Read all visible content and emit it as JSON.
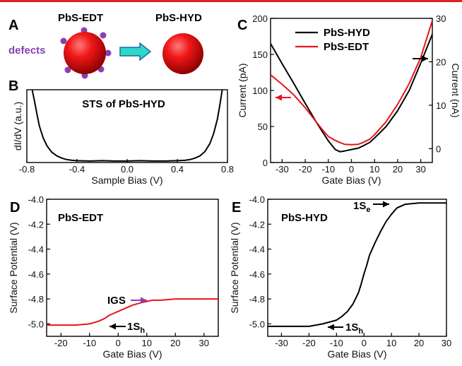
{
  "colors": {
    "black": "#000000",
    "red": "#e8141c",
    "purple": "#8b3fb0",
    "arrow": "#2fd6cc",
    "topbar": "#e02020"
  },
  "panel_a": {
    "label": "A",
    "left_title": "PbS-EDT",
    "right_title": "PbS-HYD",
    "defects_label": "defects"
  },
  "chart_data": [
    {
      "id": "B",
      "type": "line",
      "panel_label": "B",
      "title": "STS of PbS-HYD",
      "xlabel": "Sample Bias (V)",
      "ylabel": "dI/dV (a.u.)",
      "xlim": [
        -0.8,
        0.8
      ],
      "ylim": [
        0,
        1
      ],
      "xticks": [
        -0.8,
        -0.4,
        0.0,
        0.4,
        0.8
      ],
      "xticklabels": [
        "-0.8",
        "-0.4",
        "0.0",
        "0.4",
        "0.8"
      ],
      "series": [
        {
          "color": "#000000",
          "x": [
            -0.76,
            -0.74,
            -0.72,
            -0.7,
            -0.67,
            -0.64,
            -0.6,
            -0.56,
            -0.52,
            -0.48,
            -0.44,
            -0.4,
            -0.3,
            -0.2,
            -0.1,
            0.0,
            0.1,
            0.2,
            0.3,
            0.4,
            0.46,
            0.5,
            0.54,
            0.58,
            0.62,
            0.66,
            0.69,
            0.72,
            0.74,
            0.76
          ],
          "y": [
            1.02,
            0.85,
            0.67,
            0.5,
            0.34,
            0.23,
            0.14,
            0.09,
            0.06,
            0.04,
            0.03,
            0.025,
            0.02,
            0.025,
            0.02,
            0.02,
            0.025,
            0.02,
            0.02,
            0.025,
            0.03,
            0.04,
            0.06,
            0.09,
            0.15,
            0.26,
            0.4,
            0.6,
            0.8,
            1.02
          ]
        }
      ]
    },
    {
      "id": "C",
      "type": "line",
      "panel_label": "C",
      "xlabel": "Gate Bias (V)",
      "ylabel_left": "Current (pA)",
      "ylabel_right": "Current (nA)",
      "xlim": [
        -35,
        35
      ],
      "ylim_left": [
        0,
        200
      ],
      "ylim_right": [
        -3.2,
        30
      ],
      "xticks": [
        -30,
        -20,
        -10,
        0,
        10,
        20,
        30
      ],
      "xticklabels": [
        "-30",
        "-20",
        "-10",
        "0",
        "10",
        "20",
        "30"
      ],
      "yticks_left": [
        0,
        50,
        100,
        150,
        200
      ],
      "yticklabels_left": [
        "0",
        "50",
        "100",
        "150",
        "200"
      ],
      "yticks_right": [
        0,
        10,
        20,
        30
      ],
      "yticklabels_right": [
        "0",
        "10",
        "20",
        "30"
      ],
      "legend": [
        "PbS-HYD",
        "PbS-EDT"
      ],
      "series": [
        {
          "name": "PbS-HYD",
          "axis": "left",
          "color": "#000000",
          "x": [
            -35,
            -30,
            -25,
            -20,
            -15,
            -10,
            -7,
            -5,
            -3,
            0,
            3,
            5,
            8,
            10,
            15,
            20,
            25,
            30,
            35
          ],
          "y": [
            165,
            137,
            110,
            82,
            55,
            30,
            18,
            15,
            16,
            18,
            20,
            23,
            28,
            34,
            50,
            72,
            100,
            138,
            178
          ]
        },
        {
          "name": "PbS-EDT",
          "axis": "right",
          "color": "#e8141c",
          "x": [
            -35,
            -30,
            -25,
            -20,
            -15,
            -12,
            -10,
            -7,
            -5,
            -3,
            0,
            3,
            5,
            8,
            10,
            15,
            20,
            25,
            30,
            35
          ],
          "y": [
            17,
            14.8,
            12.4,
            9.4,
            6.0,
            4.0,
            2.8,
            1.9,
            1.4,
            1.0,
            0.9,
            1.0,
            1.4,
            2.2,
            3.2,
            6.2,
            10.2,
            15.0,
            21.0,
            29.5
          ]
        }
      ]
    },
    {
      "id": "D",
      "type": "line",
      "panel_label": "D",
      "inner_label": "PbS-EDT",
      "xlabel": "Gate Bias (V)",
      "ylabel": "Surface Potential (V)",
      "xlim": [
        -25,
        35
      ],
      "ylim": [
        -5.1,
        -4.0
      ],
      "xticks": [
        -20,
        -10,
        0,
        10,
        20,
        30
      ],
      "xticklabels": [
        "-20",
        "-10",
        "0",
        "10",
        "20",
        "30"
      ],
      "yticks": [
        -5.0,
        -4.8,
        -4.6,
        -4.4,
        -4.2,
        -4.0
      ],
      "yticklabels": [
        "-5.0",
        "-4.8",
        "-4.6",
        "-4.4",
        "-4.2",
        "-4.0"
      ],
      "annotations": [
        {
          "text": "IGS"
        },
        {
          "text": "1S",
          "sub": "h"
        }
      ],
      "series": [
        {
          "color": "#e8141c",
          "x": [
            -25,
            -20,
            -15,
            -10,
            -7,
            -5,
            -3,
            0,
            3,
            5,
            8,
            10,
            12,
            15,
            20,
            25,
            30,
            35
          ],
          "y": [
            -5.01,
            -5.01,
            -5.01,
            -5.0,
            -4.98,
            -4.96,
            -4.93,
            -4.9,
            -4.87,
            -4.85,
            -4.83,
            -4.82,
            -4.81,
            -4.81,
            -4.8,
            -4.8,
            -4.8,
            -4.8
          ]
        }
      ]
    },
    {
      "id": "E",
      "type": "line",
      "panel_label": "E",
      "inner_label": "PbS-HYD",
      "xlabel": "Gate Bias (V)",
      "ylabel": "Surface Potential (V)",
      "xlim": [
        -35,
        30
      ],
      "ylim": [
        -5.1,
        -4.0
      ],
      "xticks": [
        -30,
        -20,
        -10,
        0,
        10,
        20,
        30
      ],
      "xticklabels": [
        "-30",
        "-20",
        "-10",
        "0",
        "10",
        "20",
        "30"
      ],
      "yticks": [
        -5.0,
        -4.8,
        -4.6,
        -4.4,
        -4.2,
        -4.0
      ],
      "yticklabels": [
        "-5.0",
        "-4.8",
        "-4.6",
        "-4.4",
        "-4.2",
        "-4.0"
      ],
      "annotations": [
        {
          "text": "1S",
          "sub": "e"
        },
        {
          "text": "1S",
          "sub": "h"
        }
      ],
      "series": [
        {
          "color": "#000000",
          "x": [
            -35,
            -30,
            -25,
            -20,
            -15,
            -10,
            -8,
            -6,
            -4,
            -2,
            -1,
            0,
            1,
            2,
            4,
            6,
            8,
            10,
            12,
            15,
            20,
            25,
            30
          ],
          "y": [
            -5.02,
            -5.02,
            -5.02,
            -5.02,
            -5.0,
            -4.97,
            -4.94,
            -4.9,
            -4.84,
            -4.75,
            -4.68,
            -4.6,
            -4.53,
            -4.45,
            -4.35,
            -4.26,
            -4.18,
            -4.12,
            -4.07,
            -4.04,
            -4.03,
            -4.03,
            -4.03
          ]
        }
      ]
    }
  ]
}
